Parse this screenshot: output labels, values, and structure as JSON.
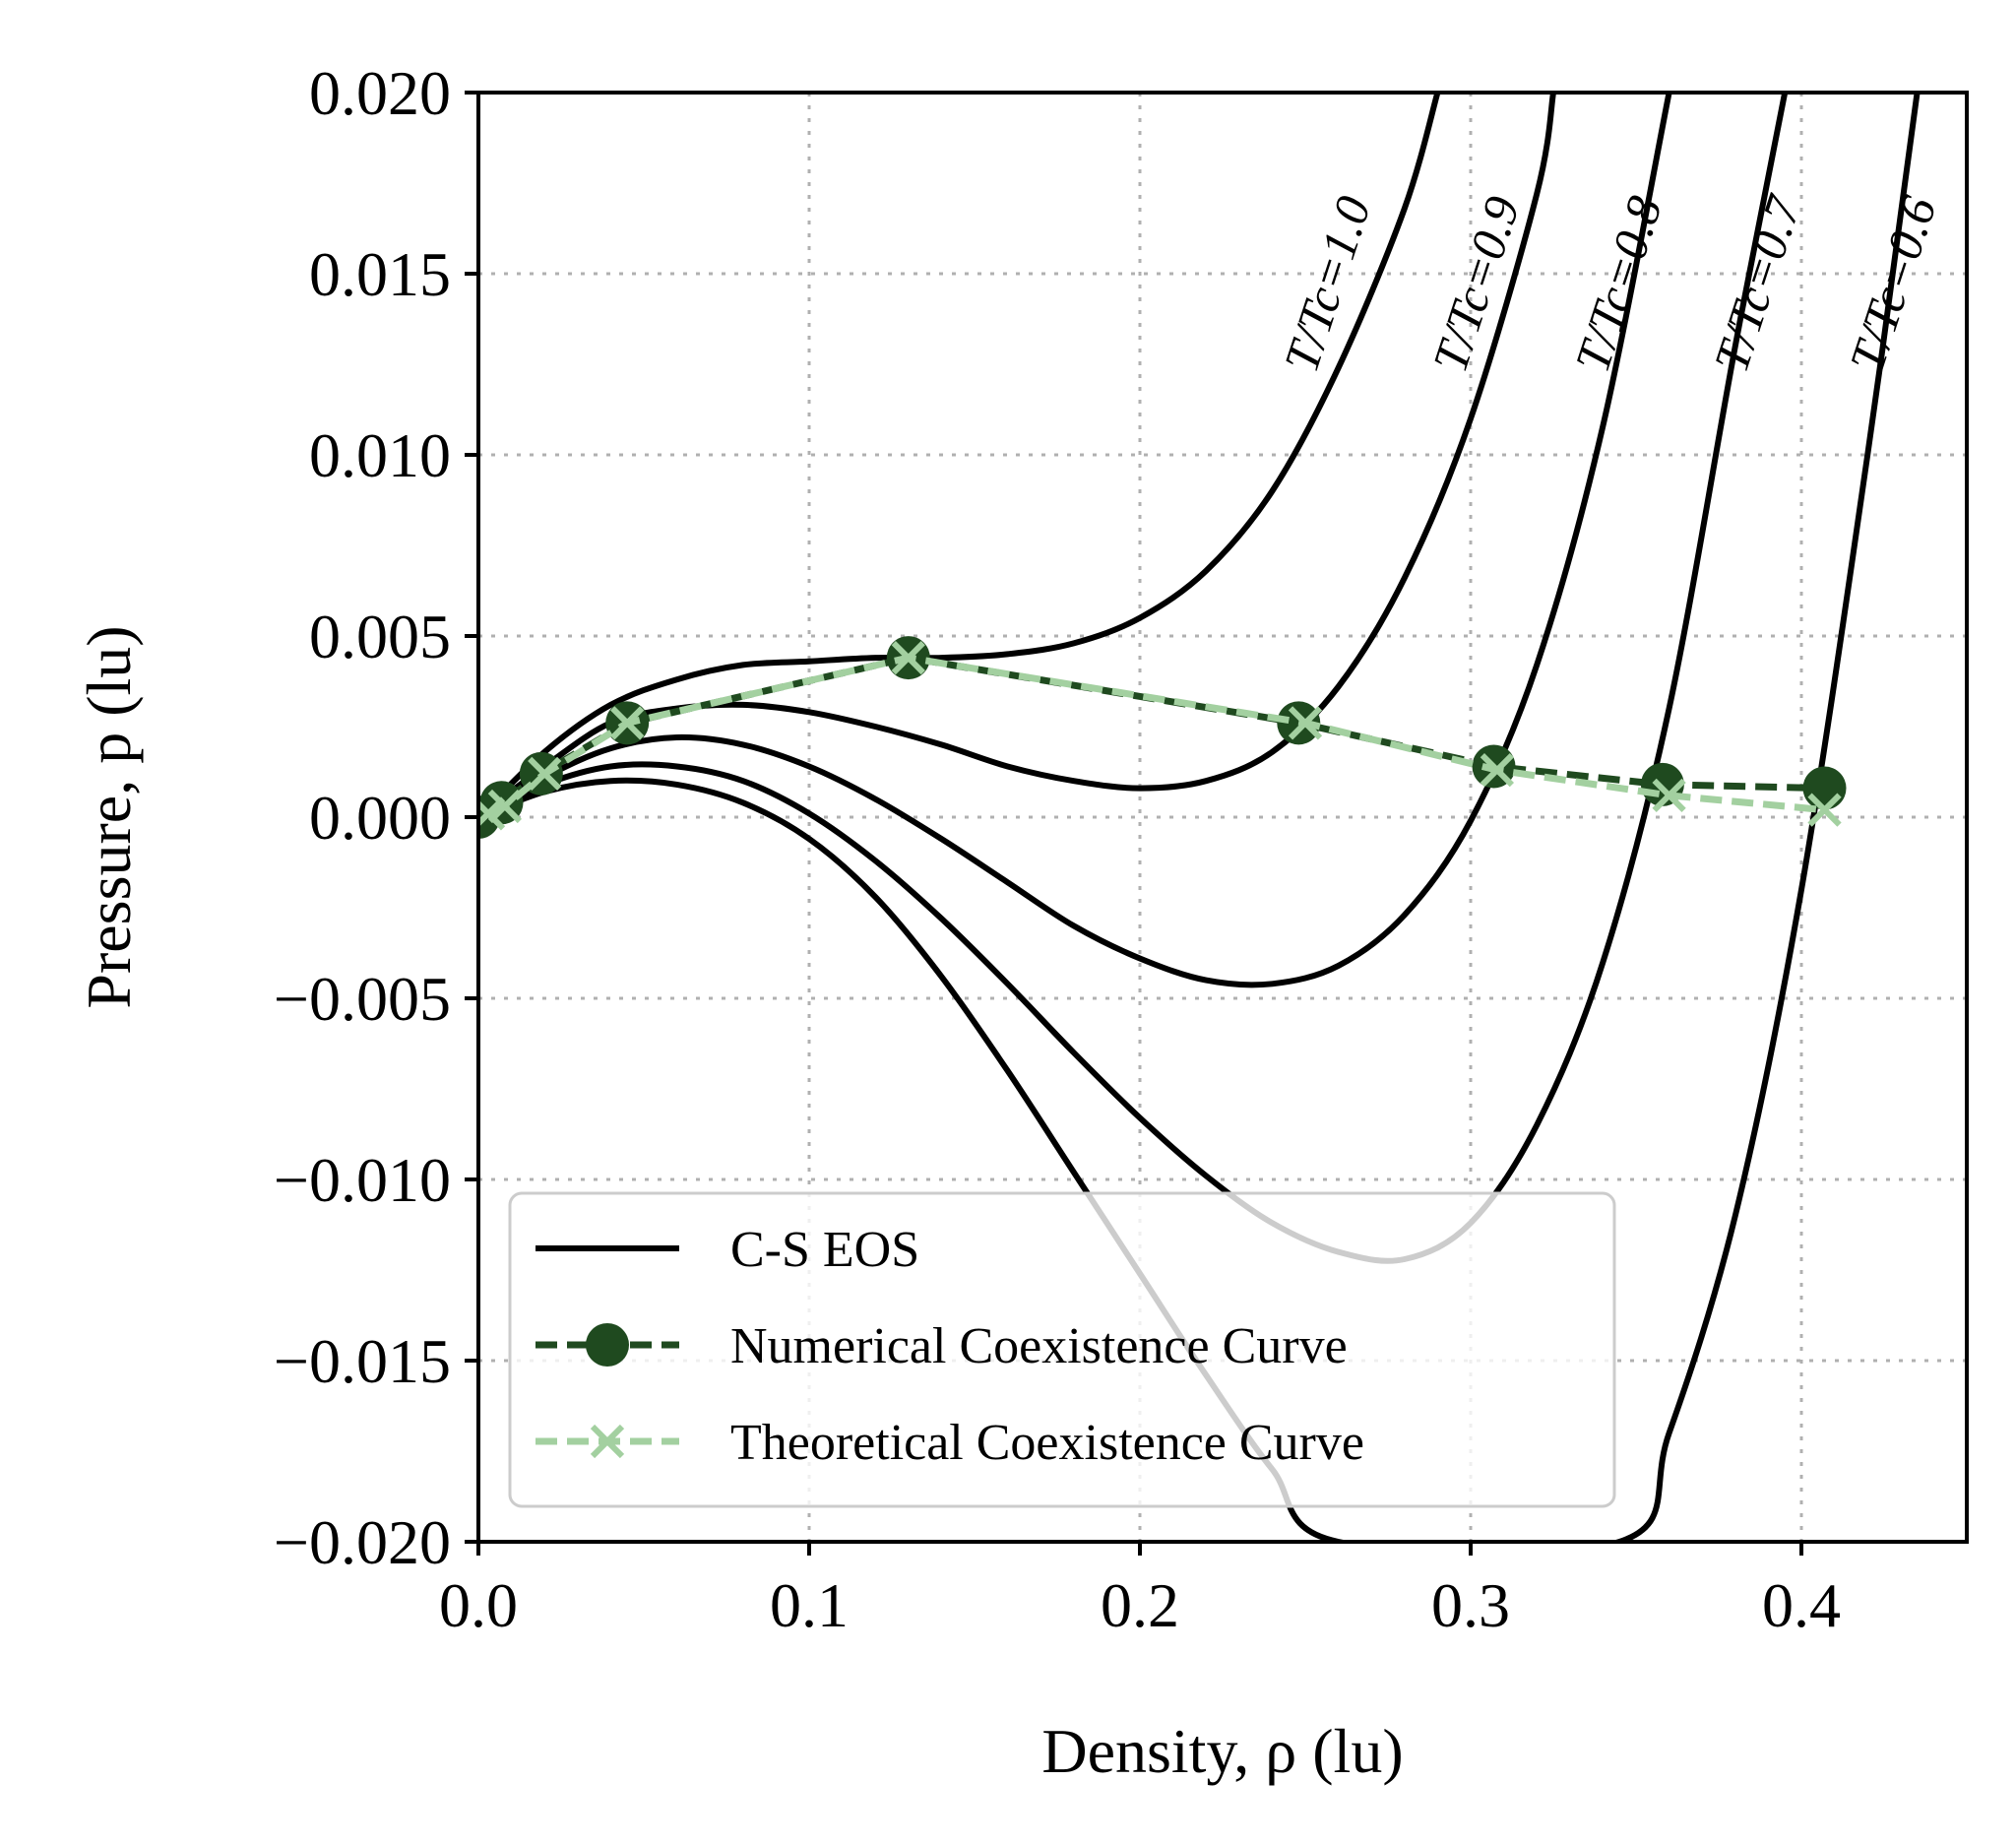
{
  "chart_data": {
    "type": "line",
    "xlabel": "Density, ρ (lu)",
    "ylabel": "Pressure, p (lu)",
    "xlim": [
      0.0,
      0.45
    ],
    "ylim": [
      -0.02,
      0.02
    ],
    "x_ticks": [
      0.0,
      0.1,
      0.2,
      0.3,
      0.4
    ],
    "x_tick_labels": [
      "0.0",
      "0.1",
      "0.2",
      "0.3",
      "0.4"
    ],
    "y_ticks": [
      -0.02,
      -0.015,
      -0.01,
      -0.005,
      0.0,
      0.005,
      0.01,
      0.015,
      0.02
    ],
    "y_tick_labels": [
      "−0.020",
      "−0.015",
      "−0.010",
      "−0.005",
      "0.000",
      "0.005",
      "0.010",
      "0.015",
      "0.020"
    ],
    "grid": true,
    "legend_position": "lower-left",
    "legend": [
      {
        "label": "C-S EOS",
        "style": "solid",
        "color": "#000000"
      },
      {
        "label": "Numerical Coexistence Curve",
        "style": "dashed-circle",
        "color": "#1f4a1f"
      },
      {
        "label": "Theoretical Coexistence Curve",
        "style": "dashed-x",
        "color": "#a3d0a0"
      }
    ],
    "eos_series": [
      {
        "label": "T/Tc=1.0",
        "x": [
          0.0,
          0.02,
          0.04,
          0.06,
          0.08,
          0.1,
          0.12,
          0.14,
          0.16,
          0.18,
          0.2,
          0.22,
          0.24,
          0.26,
          0.28,
          0.29
        ],
        "y": [
          0.0,
          0.0018,
          0.0031,
          0.0038,
          0.0042,
          0.0043,
          0.0044,
          0.0044,
          0.0045,
          0.0048,
          0.0055,
          0.0068,
          0.009,
          0.0124,
          0.0168,
          0.02
        ]
      },
      {
        "label": "T/Tc=0.9",
        "x": [
          0.0,
          0.02,
          0.04,
          0.06,
          0.08,
          0.1,
          0.12,
          0.14,
          0.16,
          0.18,
          0.2,
          0.22,
          0.24,
          0.26,
          0.28,
          0.3,
          0.32,
          0.325
        ],
        "y": [
          0.0,
          0.0014,
          0.0026,
          0.003,
          0.0031,
          0.0029,
          0.0025,
          0.002,
          0.0014,
          0.001,
          0.0008,
          0.001,
          0.0018,
          0.0036,
          0.0066,
          0.011,
          0.0172,
          0.02
        ]
      },
      {
        "label": "T/Tc=0.8",
        "x": [
          0.0,
          0.02,
          0.04,
          0.06,
          0.08,
          0.1,
          0.12,
          0.14,
          0.16,
          0.18,
          0.2,
          0.22,
          0.24,
          0.26,
          0.28,
          0.3,
          0.32,
          0.34,
          0.36
        ],
        "y": [
          0.0,
          0.0011,
          0.0019,
          0.0022,
          0.002,
          0.0014,
          0.0005,
          -0.0006,
          -0.0018,
          -0.003,
          -0.0039,
          -0.0045,
          -0.0046,
          -0.0041,
          -0.0027,
          -0.0001,
          0.0042,
          0.0108,
          0.02
        ]
      },
      {
        "label": "T/Tc=0.7",
        "x": [
          0.0,
          0.02,
          0.04,
          0.06,
          0.08,
          0.1,
          0.12,
          0.14,
          0.16,
          0.18,
          0.2,
          0.22,
          0.24,
          0.26,
          0.28,
          0.3,
          0.32,
          0.34,
          0.36,
          0.38,
          0.395
        ],
        "y": [
          0.0,
          0.0009,
          0.0014,
          0.0014,
          0.001,
          0.0001,
          -0.0012,
          -0.0028,
          -0.0046,
          -0.0065,
          -0.0083,
          -0.0099,
          -0.0112,
          -0.012,
          -0.0122,
          -0.0112,
          -0.0085,
          -0.004,
          0.003,
          0.013,
          0.02
        ]
      },
      {
        "label": "T/Tc=0.6",
        "x": [
          0.0,
          0.02,
          0.04,
          0.06,
          0.08,
          0.1,
          0.12,
          0.14,
          0.16,
          0.18,
          0.2,
          0.22,
          0.24,
          0.26,
          0.345,
          0.36,
          0.38,
          0.4,
          0.42,
          0.435
        ],
        "y": [
          0.0,
          0.0007,
          0.001,
          0.0009,
          0.0004,
          -0.0006,
          -0.0022,
          -0.0044,
          -0.007,
          -0.0098,
          -0.0126,
          -0.0154,
          -0.018,
          -0.02,
          -0.02,
          -0.017,
          -0.011,
          -0.002,
          0.01,
          0.02
        ]
      }
    ],
    "numerical_coexistence": {
      "x": [
        0.0,
        0.007,
        0.019,
        0.045,
        0.13,
        0.248,
        0.307,
        0.358,
        0.407
      ],
      "y": [
        0.0,
        0.0004,
        0.0012,
        0.0026,
        0.0044,
        0.0026,
        0.0014,
        0.0009,
        0.0008
      ]
    },
    "theoretical_coexistence": {
      "x": [
        0.003,
        0.008,
        0.02,
        0.045,
        0.13,
        0.25,
        0.308,
        0.36,
        0.407
      ],
      "y": [
        0.0001,
        0.0003,
        0.0012,
        0.0026,
        0.0044,
        0.0026,
        0.0013,
        0.0006,
        0.0002
      ]
    },
    "curve_labels": [
      {
        "text": "T/Tc=1.0",
        "x": 0.253,
        "y": 0.0122
      },
      {
        "text": "T/Tc=0.9",
        "x": 0.298,
        "y": 0.0122
      },
      {
        "text": "T/Tc=0.8",
        "x": 0.341,
        "y": 0.0122
      },
      {
        "text": "T/Tc=0.7",
        "x": 0.383,
        "y": 0.0122
      },
      {
        "text": "T/Tc=0.6",
        "x": 0.424,
        "y": 0.0122
      }
    ]
  }
}
